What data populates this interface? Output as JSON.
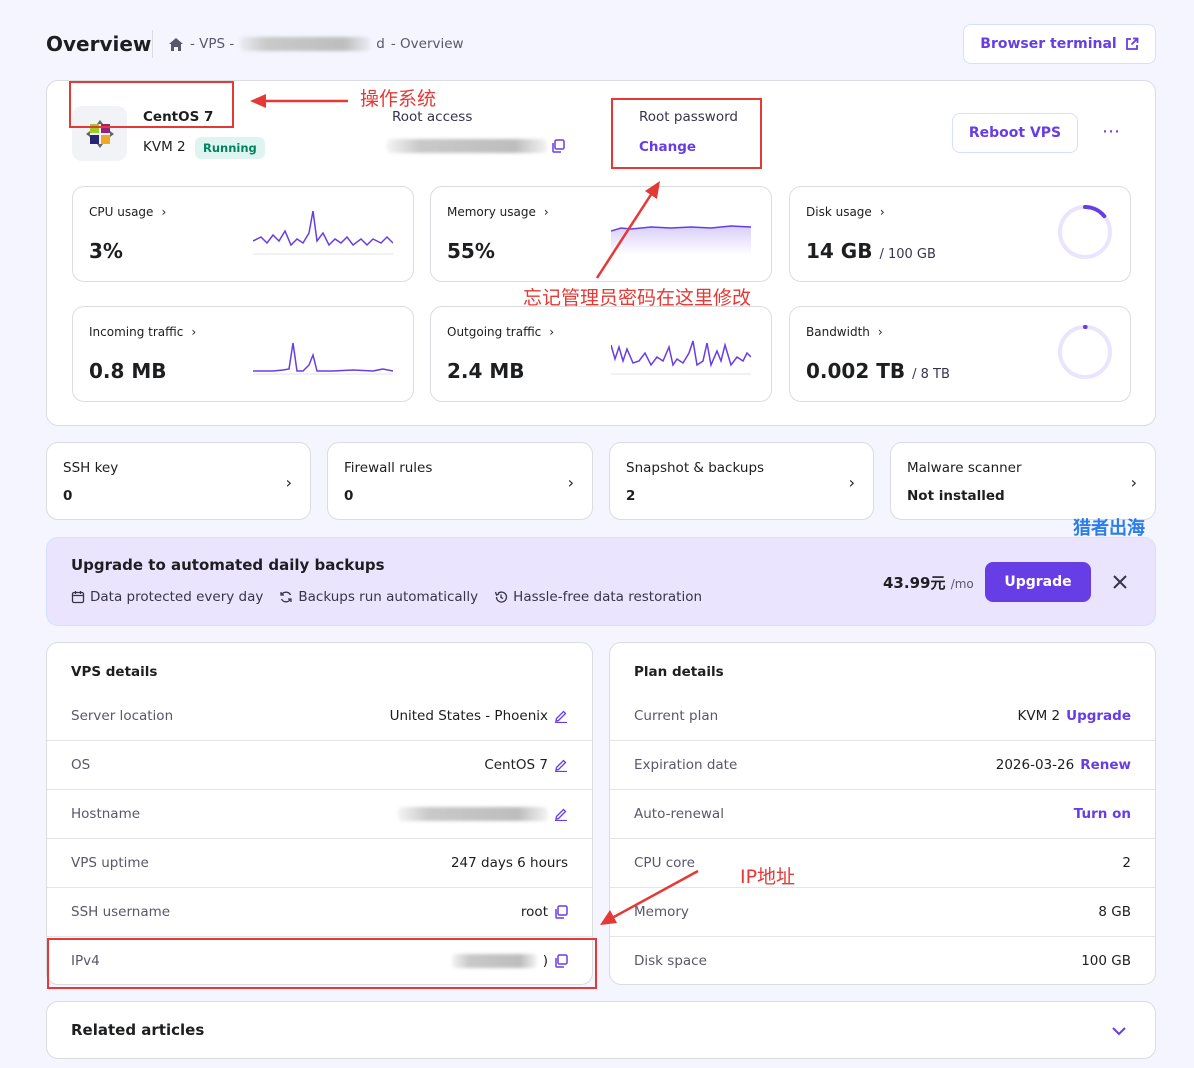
{
  "header": {
    "title": "Overview",
    "breadcrumb": {
      "sep1": "- VPS -",
      "hidden_tail": "d",
      "sep2": "- Overview"
    },
    "terminal_button": "Browser terminal"
  },
  "server": {
    "os_name": "CentOS 7",
    "plan": "KVM 2",
    "status": "Running",
    "root_access_label": "Root access",
    "root_access_tail": "…2.…",
    "root_password_label": "Root password",
    "change_label": "Change",
    "reboot_label": "Reboot VPS",
    "more_label": "⋯"
  },
  "metrics": {
    "cpu": {
      "label": "CPU usage",
      "value": "3%"
    },
    "memory": {
      "label": "Memory usage",
      "value": "55%"
    },
    "disk": {
      "label": "Disk usage",
      "value": "14 GB",
      "total": "/ 100 GB",
      "fraction": 0.14
    },
    "incoming": {
      "label": "Incoming traffic",
      "value": "0.8 MB"
    },
    "outgoing": {
      "label": "Outgoing traffic",
      "value": "2.4 MB"
    },
    "bandwidth": {
      "label": "Bandwidth",
      "value": "0.002 TB",
      "total": "/ 8 TB",
      "fraction": 0.00025
    }
  },
  "tiles": [
    {
      "title": "SSH key",
      "value": "0"
    },
    {
      "title": "Firewall rules",
      "value": "0"
    },
    {
      "title": "Snapshot & backups",
      "value": "2"
    },
    {
      "title": "Malware scanner",
      "value": "Not installed"
    }
  ],
  "upgrade_banner": {
    "title": "Upgrade to automated daily backups",
    "features": [
      "Data protected every day",
      "Backups run automatically",
      "Hassle-free data restoration"
    ],
    "price": "43.99元",
    "per": "/mo",
    "button": "Upgrade"
  },
  "vps_details": {
    "title": "VPS details",
    "rows": [
      {
        "key": "Server location",
        "value": "United States - Phoenix"
      },
      {
        "key": "OS",
        "value": "CentOS 7"
      },
      {
        "key": "Hostname",
        "value": ""
      },
      {
        "key": "VPS uptime",
        "value": "247 days 6 hours"
      },
      {
        "key": "SSH username",
        "value": "root"
      },
      {
        "key": "IPv4",
        "value": ")"
      }
    ]
  },
  "plan_details": {
    "title": "Plan details",
    "rows": [
      {
        "key": "Current plan",
        "value": "KVM 2",
        "action": "Upgrade"
      },
      {
        "key": "Expiration date",
        "value": "2026-03-26",
        "action": "Renew"
      },
      {
        "key": "Auto-renewal",
        "value": "",
        "action": "Turn on"
      },
      {
        "key": "CPU core",
        "value": "2",
        "action": ""
      },
      {
        "key": "Memory",
        "value": "8 GB",
        "action": ""
      },
      {
        "key": "Disk space",
        "value": "100 GB",
        "action": ""
      }
    ]
  },
  "related": {
    "title": "Related articles"
  },
  "annotations": {
    "os": "操作系统",
    "password": "忘记管理员密码在这里修改",
    "ip": "IP地址",
    "watermark": "猎者出海"
  },
  "colors": {
    "accent": "#673de6",
    "annotation": "#e53935",
    "running_bg": "#def4f0",
    "running_fg": "#008361",
    "banner_bg": "#ebe4ff"
  }
}
